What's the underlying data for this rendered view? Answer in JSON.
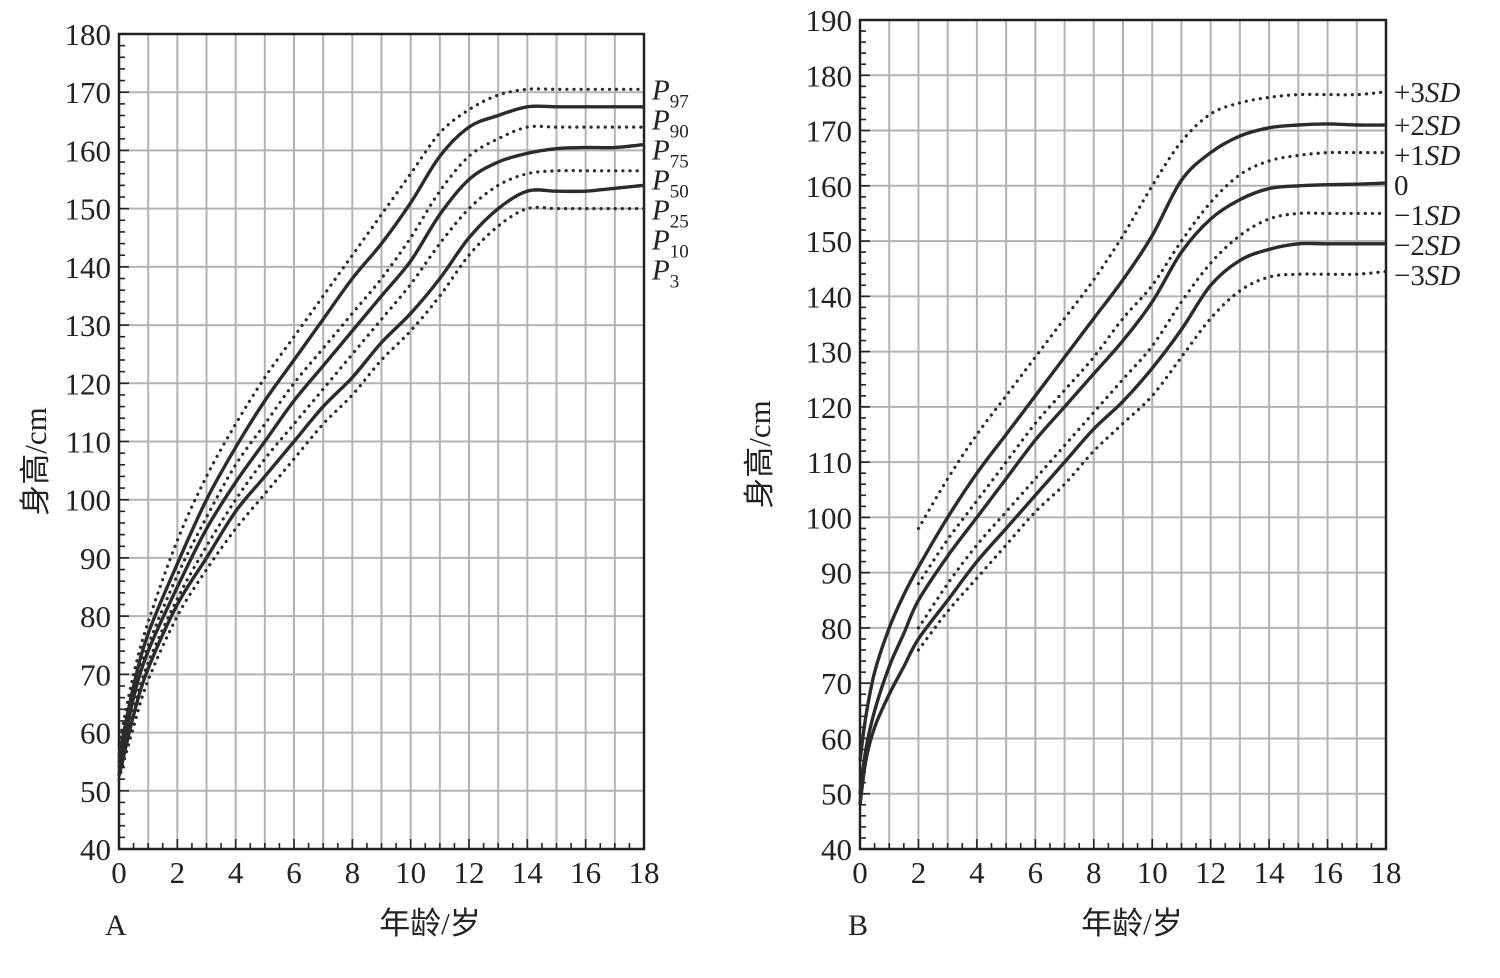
{
  "chart_data": [
    {
      "type": "line",
      "panel_label": "A",
      "xlabel": "年龄/岁",
      "ylabel": "身高/cm",
      "xlim": [
        0,
        18
      ],
      "ylim": [
        40,
        180
      ],
      "xticks": [
        0,
        2,
        4,
        6,
        8,
        10,
        12,
        14,
        16,
        18
      ],
      "yticks": [
        40,
        50,
        60,
        70,
        80,
        90,
        100,
        110,
        120,
        130,
        140,
        150,
        160,
        170,
        180
      ],
      "grid": true,
      "legend": "right-of-plot labels",
      "series": [
        {
          "name": "P97",
          "label_main": "P",
          "label_sub": "97",
          "style": "dotted",
          "x": [
            0,
            0.5,
            1,
            2,
            3,
            4,
            5,
            6,
            7,
            8,
            9,
            10,
            11,
            12,
            13,
            14,
            15,
            16,
            17,
            18
          ],
          "y": [
            58,
            70,
            79,
            93,
            104,
            113,
            121,
            128,
            135,
            142,
            149,
            156,
            163,
            167,
            169.5,
            170.5,
            170.5,
            170.5,
            170.5,
            170.5
          ]
        },
        {
          "name": "P90",
          "label_main": "P",
          "label_sub": "90",
          "style": "solid",
          "x": [
            0,
            0.5,
            1,
            2,
            3,
            4,
            5,
            6,
            7,
            8,
            9,
            10,
            11,
            12,
            13,
            14,
            15,
            16,
            17,
            18
          ],
          "y": [
            56,
            68,
            77,
            89,
            100,
            109,
            117,
            124,
            131,
            138,
            144,
            151,
            159,
            164,
            166,
            167.5,
            167.5,
            167.5,
            167.5,
            167.5
          ]
        },
        {
          "name": "P75",
          "label_main": "P",
          "label_sub": "75",
          "style": "dotted",
          "x": [
            0,
            0.5,
            1,
            2,
            3,
            4,
            5,
            6,
            7,
            8,
            9,
            10,
            11,
            12,
            13,
            14,
            15,
            16,
            17,
            18
          ],
          "y": [
            55,
            67,
            75,
            87,
            97,
            106,
            113,
            120,
            126,
            132,
            138,
            145,
            153,
            159,
            162,
            164,
            164,
            164,
            164,
            164
          ]
        },
        {
          "name": "P50",
          "label_main": "P",
          "label_sub": "50",
          "style": "solid",
          "x": [
            0,
            0.5,
            1,
            2,
            3,
            4,
            5,
            6,
            7,
            8,
            9,
            10,
            11,
            12,
            13,
            14,
            15,
            16,
            17,
            18
          ],
          "y": [
            54,
            66,
            74,
            85,
            95,
            103,
            110,
            117,
            123,
            129,
            135,
            141,
            149,
            155,
            158,
            159.5,
            160.3,
            160.5,
            160.5,
            161
          ]
        },
        {
          "name": "P25",
          "label_main": "P",
          "label_sub": "25",
          "style": "dotted",
          "x": [
            0,
            0.5,
            1,
            2,
            3,
            4,
            5,
            6,
            7,
            8,
            9,
            10,
            11,
            12,
            13,
            14,
            15,
            16,
            17,
            18
          ],
          "y": [
            53,
            64,
            72,
            83,
            92,
            100,
            107,
            113,
            119,
            125,
            131,
            137,
            144,
            150,
            154,
            156,
            156.5,
            156.5,
            156.5,
            156.5
          ]
        },
        {
          "name": "P10",
          "label_main": "P",
          "label_sub": "10",
          "style": "solid",
          "x": [
            0,
            0.5,
            1,
            2,
            3,
            4,
            5,
            6,
            7,
            8,
            9,
            10,
            11,
            12,
            13,
            14,
            15,
            16,
            17,
            18
          ],
          "y": [
            52.5,
            63,
            71,
            82,
            90,
            98,
            104,
            110,
            116,
            121,
            127,
            132,
            138,
            145,
            150,
            153,
            153,
            153,
            153.5,
            154
          ]
        },
        {
          "name": "P3",
          "label_main": "P",
          "label_sub": "3",
          "style": "dotted",
          "x": [
            0,
            0.5,
            1,
            2,
            3,
            4,
            5,
            6,
            7,
            8,
            9,
            10,
            11,
            12,
            13,
            14,
            15,
            16,
            17,
            18
          ],
          "y": [
            52,
            61,
            69,
            80,
            88,
            95,
            101,
            107,
            113,
            118,
            124,
            129,
            135,
            142,
            147,
            150,
            150,
            150,
            150,
            150
          ]
        }
      ]
    },
    {
      "type": "line",
      "panel_label": "B",
      "xlabel": "年龄/岁",
      "ylabel": "身高/cm",
      "xlim": [
        0,
        18
      ],
      "ylim": [
        40,
        190
      ],
      "xticks": [
        0,
        2,
        4,
        6,
        8,
        10,
        12,
        14,
        16,
        18
      ],
      "yticks": [
        40,
        50,
        60,
        70,
        80,
        90,
        100,
        110,
        120,
        130,
        140,
        150,
        160,
        170,
        180,
        190
      ],
      "grid": true,
      "legend": "right-of-plot labels",
      "series": [
        {
          "name": "+3SD",
          "label_main": "+3",
          "label_italic": "SD",
          "style": "dotted",
          "x": [
            2,
            3,
            4,
            5,
            6,
            7,
            8,
            9,
            10,
            11,
            12,
            13,
            14,
            15,
            16,
            17,
            18
          ],
          "y": [
            98,
            107,
            115,
            122,
            129,
            136,
            143,
            151,
            160,
            168,
            173,
            175,
            176,
            176.5,
            176.5,
            176.5,
            177
          ]
        },
        {
          "name": "+2SD",
          "label_main": "+2",
          "label_italic": "SD",
          "style": "solid",
          "x": [
            0,
            0.2,
            0.5,
            1,
            1.5,
            2,
            3,
            4,
            5,
            6,
            7,
            8,
            9,
            10,
            11,
            12,
            13,
            14,
            15,
            16,
            17,
            18
          ],
          "y": [
            56,
            64,
            72,
            80,
            86,
            91,
            100,
            108,
            115,
            122,
            129,
            136,
            143,
            151,
            161,
            166,
            169,
            170.5,
            171,
            171.2,
            171,
            171
          ]
        },
        {
          "name": "+1SD",
          "label_main": "+1",
          "label_italic": "SD",
          "style": "dotted",
          "x": [
            2,
            3,
            4,
            5,
            6,
            7,
            8,
            9,
            10,
            11,
            12,
            13,
            14,
            15,
            16,
            17,
            18
          ],
          "y": [
            88,
            96,
            103,
            110,
            117,
            123,
            129,
            136,
            142,
            150,
            157,
            162,
            164.5,
            165.5,
            166,
            166,
            166
          ]
        },
        {
          "name": "0",
          "label_main": "0",
          "label_italic": "",
          "style": "solid",
          "x": [
            0,
            0.2,
            0.5,
            1,
            1.5,
            2,
            3,
            4,
            5,
            6,
            7,
            8,
            9,
            10,
            11,
            12,
            13,
            14,
            15,
            16,
            17,
            18
          ],
          "y": [
            50,
            58,
            65,
            73,
            79,
            85,
            93,
            100,
            107,
            114,
            120,
            126,
            132,
            139,
            148,
            154,
            157.5,
            159.5,
            160,
            160.2,
            160.3,
            160.5
          ]
        },
        {
          "name": "-1SD",
          "label_main": "−1",
          "label_italic": "SD",
          "style": "dotted",
          "x": [
            2,
            3,
            4,
            5,
            6,
            7,
            8,
            9,
            10,
            11,
            12,
            13,
            14,
            15,
            16,
            17,
            18
          ],
          "y": [
            80,
            88,
            95,
            101,
            107,
            113,
            119,
            125,
            131,
            139,
            146,
            151,
            154,
            155,
            155,
            155,
            155
          ]
        },
        {
          "name": "-2SD",
          "label_main": "−2",
          "label_italic": "SD",
          "style": "solid",
          "x": [
            0,
            0.2,
            0.5,
            1,
            1.5,
            2,
            3,
            4,
            5,
            6,
            7,
            8,
            9,
            10,
            11,
            12,
            13,
            14,
            15,
            16,
            17,
            18
          ],
          "y": [
            48,
            56,
            62,
            68,
            73,
            78,
            85,
            92,
            98,
            104,
            110,
            116,
            121,
            127,
            134,
            142,
            146.5,
            148.5,
            149.5,
            149.5,
            149.5,
            149.5
          ]
        },
        {
          "name": "-3SD",
          "label_main": "−3",
          "label_italic": "SD",
          "style": "dotted",
          "x": [
            2,
            3,
            4,
            5,
            6,
            7,
            8,
            9,
            10,
            11,
            12,
            13,
            14,
            15,
            16,
            17,
            18
          ],
          "y": [
            76,
            83,
            89,
            95,
            101,
            106,
            112,
            117,
            122,
            129,
            136,
            141,
            143.5,
            144,
            144,
            144,
            144.5
          ]
        }
      ]
    }
  ]
}
